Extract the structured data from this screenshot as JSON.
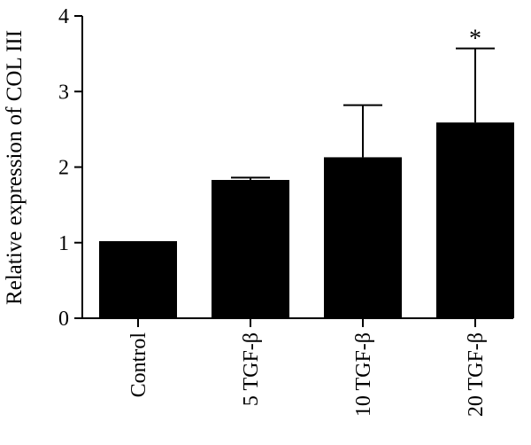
{
  "chart_data": {
    "type": "bar",
    "categories": [
      "Control",
      "5 TGF-β",
      "10 TGF-β",
      "20 TGF-β"
    ],
    "values": [
      1.02,
      1.83,
      2.13,
      2.59
    ],
    "error_upper": [
      0,
      0.03,
      0.69,
      0.98
    ],
    "annotations": [
      "",
      "",
      "",
      "*"
    ],
    "ylabel": "Relative expression of COL III",
    "xlabel": "",
    "ylim": [
      0,
      4
    ],
    "yticks": [
      0,
      1,
      2,
      3,
      4
    ],
    "grid": false,
    "legend": "none",
    "bar_color": "#000000"
  }
}
